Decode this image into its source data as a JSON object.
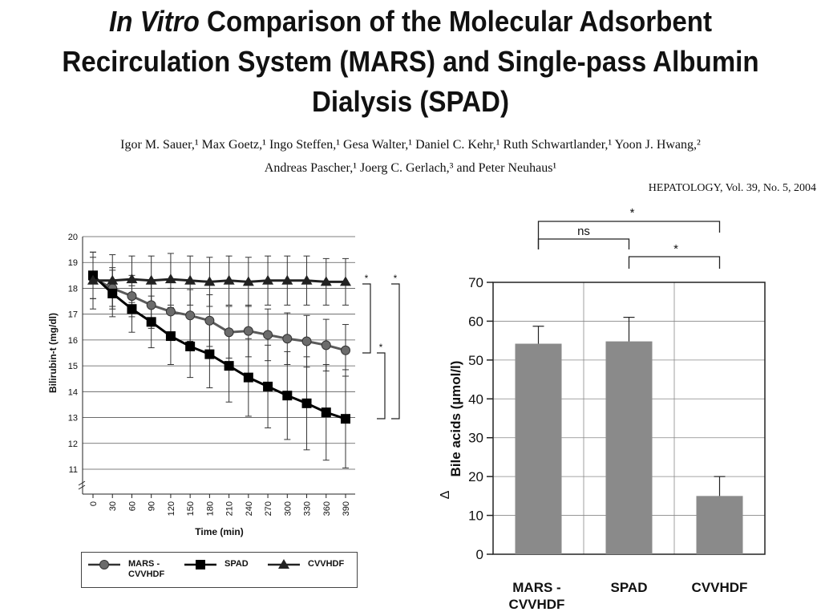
{
  "title": {
    "italic": "In Vitro",
    "line1_rest": " Comparison of the Molecular Adsorbent",
    "line2": "Recirculation System (MARS) and Single-pass Albumin",
    "line3": "Dialysis (SPAD)"
  },
  "authors": {
    "line1": "Igor M. Sauer,¹ Max Goetz,¹ Ingo Steffen,¹ Gesa Walter,¹ Daniel C. Kehr,¹ Ruth Schwartlander,¹ Yoon J. Hwang,²",
    "line2": "Andreas Pascher,¹ Joerg C. Gerlach,³ and Peter Neuhaus¹"
  },
  "journal": "HEPATOLOGY, Vol. 39, No. 5, 2004",
  "chart_data": [
    {
      "type": "line",
      "xlabel": "Time (min)",
      "ylabel": "Bilirubin-t (mg/dl)",
      "x": [
        0,
        30,
        60,
        90,
        120,
        150,
        180,
        210,
        240,
        270,
        300,
        330,
        360,
        390
      ],
      "ylim": [
        11,
        20
      ],
      "yticks": [
        11,
        12,
        13,
        14,
        15,
        16,
        17,
        18,
        19,
        20
      ],
      "grid": true,
      "legend_position": "bottom",
      "series": [
        {
          "name": "MARS - CVVHDF",
          "marker": "circle",
          "values": [
            18.4,
            18.0,
            17.7,
            17.35,
            17.1,
            16.95,
            16.75,
            16.3,
            16.35,
            16.2,
            16.05,
            15.95,
            15.8,
            15.6
          ],
          "error": [
            0.8,
            0.8,
            0.8,
            0.9,
            0.9,
            1.0,
            1.0,
            1.0,
            1.0,
            1.0,
            1.0,
            1.0,
            1.0,
            1.0
          ]
        },
        {
          "name": "SPAD",
          "marker": "square",
          "values": [
            18.5,
            17.8,
            17.2,
            16.7,
            16.15,
            15.75,
            15.45,
            15.0,
            14.55,
            14.2,
            13.85,
            13.55,
            13.2,
            12.95
          ],
          "error": [
            0.9,
            0.9,
            0.9,
            1.0,
            1.1,
            1.2,
            1.3,
            1.4,
            1.5,
            1.6,
            1.7,
            1.8,
            1.85,
            1.9
          ]
        },
        {
          "name": "CVVHDF",
          "marker": "triangle",
          "values": [
            18.3,
            18.3,
            18.35,
            18.3,
            18.35,
            18.3,
            18.25,
            18.3,
            18.25,
            18.3,
            18.3,
            18.3,
            18.25,
            18.25
          ],
          "error": [
            1.1,
            1.0,
            0.9,
            0.95,
            1.0,
            0.95,
            0.95,
            0.95,
            0.95,
            0.95,
            0.95,
            0.95,
            0.9,
            0.9
          ]
        }
      ],
      "significance": [
        "*",
        "*",
        "*"
      ]
    },
    {
      "type": "bar",
      "ylabel": "Bile acids (µmol/l)",
      "delta_label": "Δ",
      "categories": [
        "MARS - CVVHDF",
        "SPAD",
        "CVVHDF"
      ],
      "values": [
        54.2,
        54.8,
        15.0
      ],
      "error": [
        4.5,
        6.2,
        5.0
      ],
      "ylim": [
        0,
        70
      ],
      "yticks": [
        0,
        10,
        20,
        30,
        40,
        50,
        60,
        70
      ],
      "grid": true,
      "significance": [
        {
          "label": "*",
          "pair": [
            "MARS - CVVHDF",
            "CVVHDF"
          ]
        },
        {
          "label": "ns",
          "pair": [
            "MARS - CVVHDF",
            "SPAD"
          ]
        },
        {
          "label": "*",
          "pair": [
            "SPAD",
            "CVVHDF"
          ]
        }
      ]
    }
  ]
}
